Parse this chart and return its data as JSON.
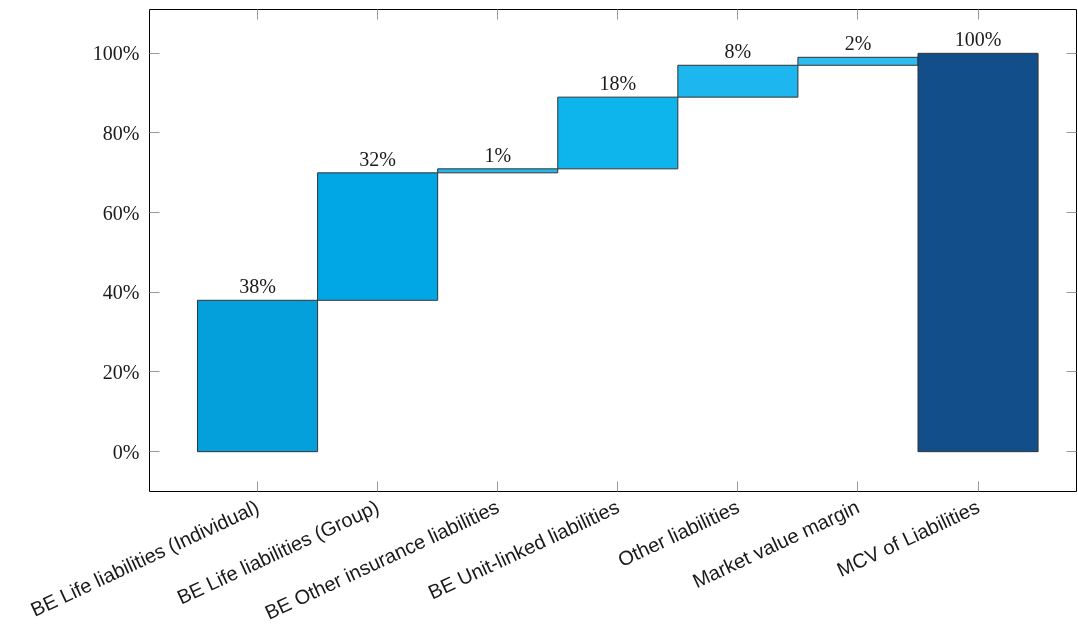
{
  "chart_data": {
    "type": "bar",
    "categories": [
      "BE Life liabilities (Individual)",
      "BE Life liabilities (Group)",
      "BE Other insurance liabilities",
      "BE Unit-linked liabilities",
      "Other liabilities",
      "Market value margin",
      "MCV of Liabilities"
    ],
    "values": [
      38,
      32,
      1,
      18,
      8,
      2,
      100
    ],
    "base": [
      0,
      38,
      70,
      71,
      89,
      97,
      0
    ],
    "colors": [
      "#04a0dc",
      "#00a7e4",
      "#22b8ee",
      "#0eb4ec",
      "#1db6ee",
      "#2dbcf0",
      "#124f8a"
    ],
    "value_labels": [
      "38%",
      "32%",
      "1%",
      "18%",
      "8%",
      "2%",
      "100%"
    ],
    "ylim": [
      -10,
      111
    ],
    "yticks": [
      {
        "value": 0,
        "label": "0%"
      },
      {
        "value": 20,
        "label": "20%"
      },
      {
        "value": 40,
        "label": "40%"
      },
      {
        "value": 60,
        "label": "60%"
      },
      {
        "value": 80,
        "label": "80%"
      },
      {
        "value": 100,
        "label": "100%"
      }
    ]
  }
}
